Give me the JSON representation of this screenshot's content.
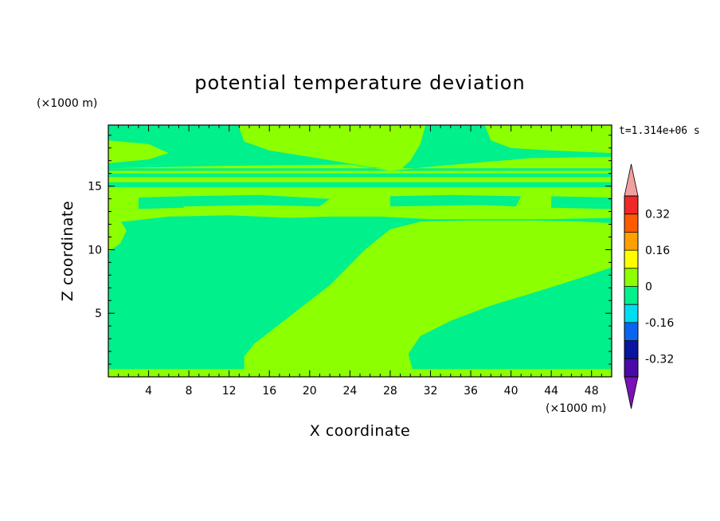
{
  "chart_data": {
    "type": "heatmap",
    "title": "potential temperature deviation",
    "xlabel": "X coordinate",
    "ylabel": "Z coordinate",
    "x_unit": "(×1000 m)",
    "y_unit": "(×1000 m)",
    "time_label": "t=1.314e+06 s",
    "xlim": [
      0,
      50
    ],
    "ylim": [
      0,
      19.8
    ],
    "x_ticks": [
      4,
      8,
      12,
      16,
      20,
      24,
      28,
      32,
      36,
      40,
      44,
      48
    ],
    "y_ticks": [
      5,
      10,
      15
    ],
    "colorbar": {
      "levels": [
        -0.4,
        -0.32,
        -0.24,
        -0.16,
        -0.08,
        0,
        0.08,
        0.16,
        0.24,
        0.32,
        0.4
      ],
      "labels": [
        "-0.32",
        "-0.16",
        "0",
        "0.16",
        "0.32"
      ],
      "label_values": [
        -0.32,
        -0.16,
        0,
        0.16,
        0.32
      ],
      "colors": [
        "#4b0aa8",
        "#0a14a0",
        "#0a64f0",
        "#00dcf0",
        "#00f08c",
        "#8cff00",
        "#ffff00",
        "#ffa000",
        "#ff5a00",
        "#f02828"
      ],
      "under_color": "#7814b4",
      "over_color": "#f0a0a0"
    },
    "fields": {
      "negative_color": "#00f08c",
      "positive_color": "#8cff00"
    },
    "regions": [
      {
        "value": "positive",
        "polygon": [
          [
            0,
            0
          ],
          [
            50,
            0
          ],
          [
            50,
            0.6
          ],
          [
            0,
            0.6
          ]
        ]
      },
      {
        "value": "positive",
        "polygon": [
          [
            13.5,
            1.6
          ],
          [
            14.5,
            2.6
          ],
          [
            22,
            7.2
          ],
          [
            25.5,
            10
          ],
          [
            28,
            11.6
          ],
          [
            31,
            12.2
          ],
          [
            36,
            12.3
          ],
          [
            42,
            12.3
          ],
          [
            47,
            12.2
          ],
          [
            50,
            12.1
          ],
          [
            50,
            8.6
          ],
          [
            47,
            7.8
          ],
          [
            43,
            6.8
          ],
          [
            38,
            5.6
          ],
          [
            34,
            4.4
          ],
          [
            31,
            3.2
          ],
          [
            29.8,
            1.8
          ],
          [
            30.2,
            0.6
          ],
          [
            13.5,
            0.6
          ]
        ]
      },
      {
        "value": "positive",
        "polygon": [
          [
            1.5,
            12.2
          ],
          [
            6,
            12.6
          ],
          [
            12,
            12.7
          ],
          [
            18,
            12.5
          ],
          [
            22,
            12.6
          ],
          [
            27,
            12.6
          ],
          [
            32,
            12.4
          ],
          [
            38,
            12.4
          ],
          [
            44,
            12.4
          ],
          [
            50,
            12.5
          ],
          [
            50,
            13.2
          ],
          [
            0,
            13.2
          ],
          [
            0,
            12.3
          ]
        ]
      },
      {
        "value": "positive",
        "polygon": [
          [
            0,
            13.2
          ],
          [
            50,
            13.2
          ],
          [
            50,
            14.9
          ],
          [
            0,
            14.9
          ]
        ]
      },
      {
        "value": "positive",
        "polygon": [
          [
            0,
            15.3
          ],
          [
            50,
            15.3
          ],
          [
            50,
            15.7
          ],
          [
            0,
            15.7
          ]
        ]
      },
      {
        "value": "positive",
        "polygon": [
          [
            0,
            16
          ],
          [
            50,
            16
          ],
          [
            50,
            16.2
          ],
          [
            0,
            16.2
          ]
        ]
      },
      {
        "value": "positive",
        "polygon": [
          [
            0,
            16.4
          ],
          [
            12,
            16.6
          ],
          [
            24,
            16.7
          ],
          [
            28,
            16.2
          ],
          [
            33,
            16.6
          ],
          [
            42,
            17.2
          ],
          [
            50,
            17.3
          ],
          [
            50,
            16.4
          ],
          [
            0,
            16.4
          ]
        ]
      },
      {
        "value": "positive",
        "polygon": [
          [
            12.9,
            19.8
          ],
          [
            13.5,
            18.5
          ],
          [
            16,
            17.8
          ],
          [
            20,
            17.3
          ],
          [
            23,
            16.9
          ],
          [
            26,
            16.5
          ],
          [
            29,
            16.3
          ],
          [
            30,
            17
          ],
          [
            31,
            18.3
          ],
          [
            31.5,
            19.8
          ]
        ]
      },
      {
        "value": "positive",
        "polygon": [
          [
            37.4,
            19.8
          ],
          [
            38,
            18.6
          ],
          [
            40,
            18
          ],
          [
            44,
            17.8
          ],
          [
            50,
            17.6
          ],
          [
            50,
            19.8
          ]
        ]
      },
      {
        "value": "positive",
        "polygon": [
          [
            0,
            16.8
          ],
          [
            4,
            17.1
          ],
          [
            6,
            17.6
          ],
          [
            4,
            18.3
          ],
          [
            0,
            18.6
          ]
        ]
      },
      {
        "value": "positive",
        "polygon": [
          [
            0,
            9.8
          ],
          [
            1.2,
            10.5
          ],
          [
            1.8,
            11.5
          ],
          [
            1.2,
            12.3
          ],
          [
            0,
            12.5
          ]
        ]
      },
      {
        "value": "negative",
        "polygon": [
          [
            7.5,
            13.4
          ],
          [
            15,
            13.5
          ],
          [
            21,
            13.4
          ],
          [
            22,
            14
          ],
          [
            15,
            14.3
          ],
          [
            7.5,
            14.2
          ]
        ]
      },
      {
        "value": "negative",
        "polygon": [
          [
            28,
            13.4
          ],
          [
            37,
            13.5
          ],
          [
            40.5,
            13.4
          ],
          [
            41,
            14.2
          ],
          [
            34,
            14.3
          ],
          [
            28,
            14.2
          ]
        ]
      },
      {
        "value": "negative",
        "polygon": [
          [
            3,
            13.2
          ],
          [
            7.5,
            13.3
          ],
          [
            7.5,
            14.2
          ],
          [
            3,
            14.1
          ]
        ]
      },
      {
        "value": "negative",
        "polygon": [
          [
            44,
            13.3
          ],
          [
            50,
            13.2
          ],
          [
            50,
            14.1
          ],
          [
            44,
            14.2
          ]
        ]
      }
    ]
  }
}
